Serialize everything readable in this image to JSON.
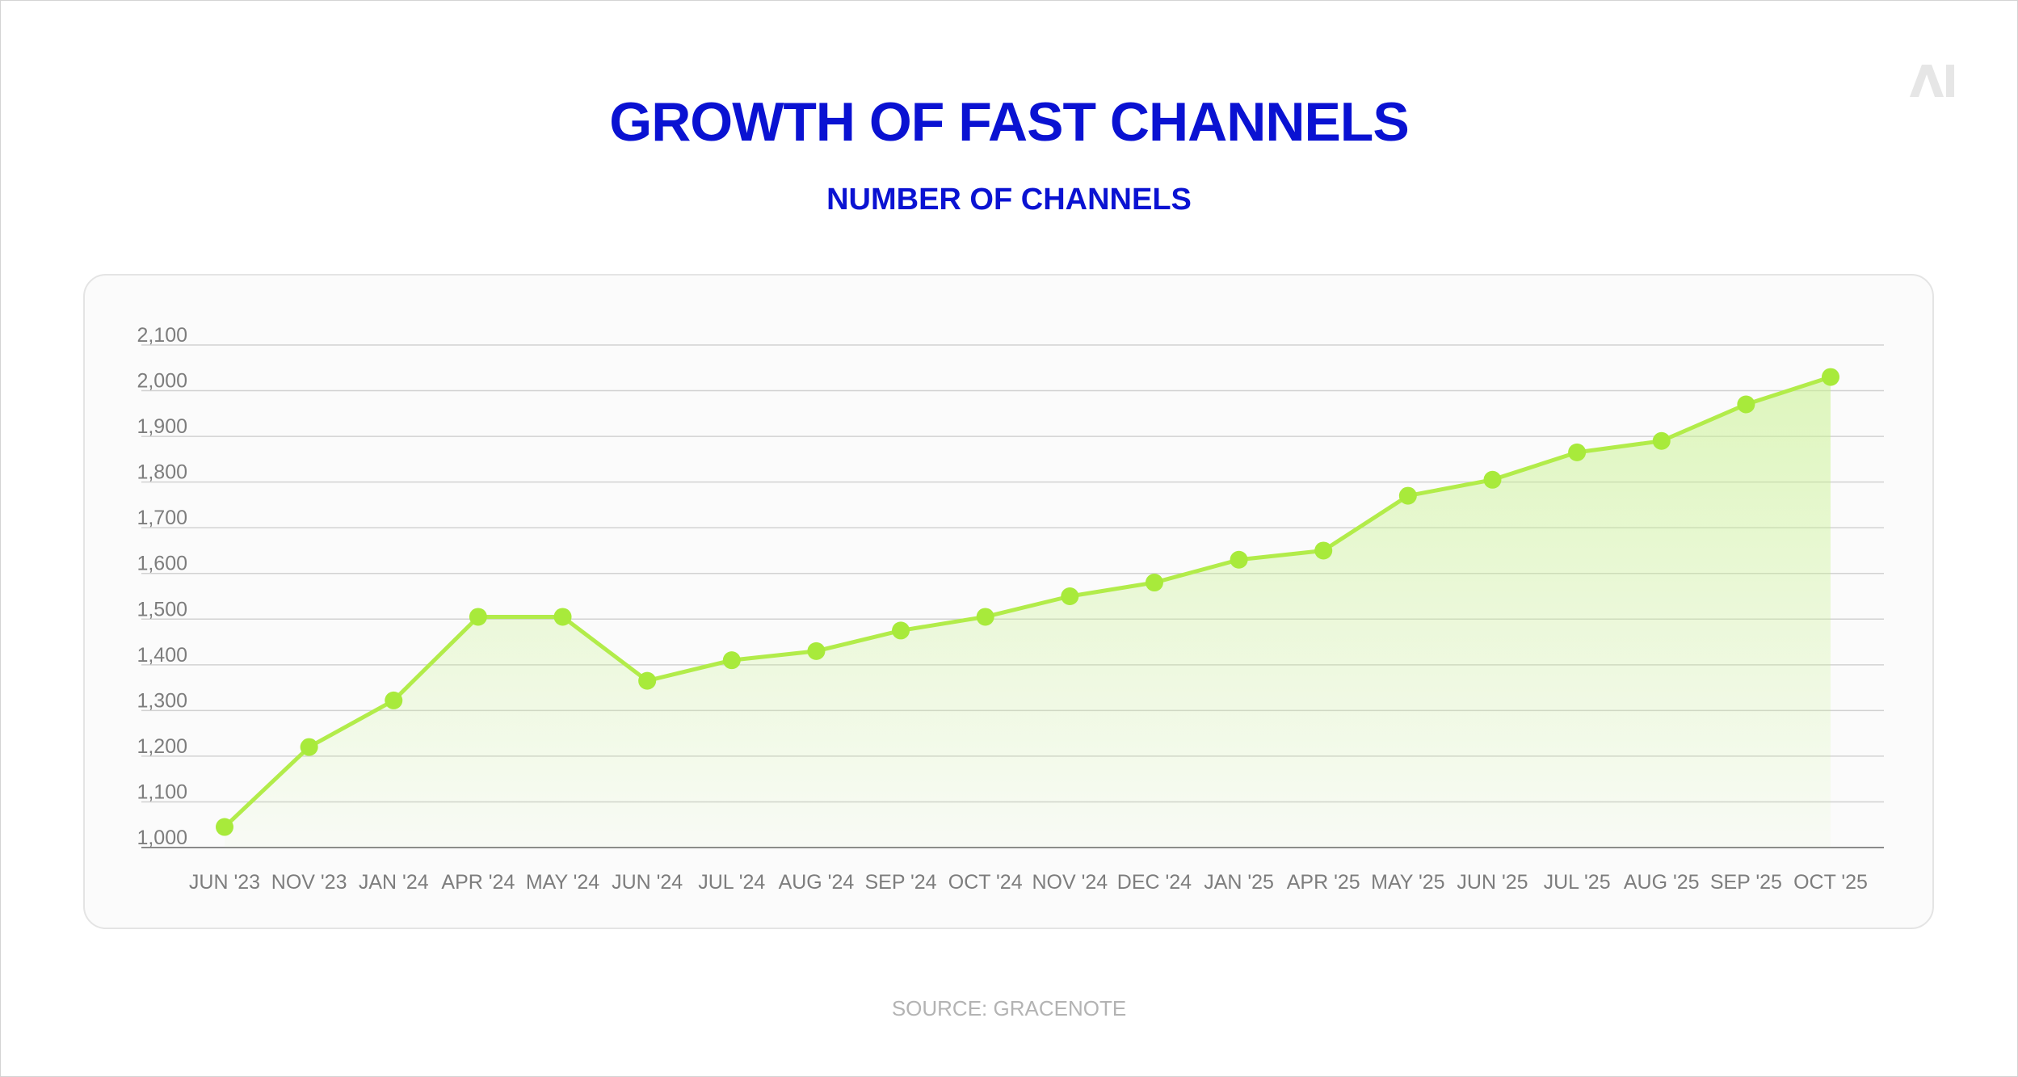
{
  "title": "GROWTH OF FAST CHANNELS",
  "subtitle": "NUMBER OF CHANNELS",
  "source": "SOURCE: GRACENOTE",
  "logo_text": "AI",
  "colors": {
    "title": "#0a12d2",
    "line": "#b2ec4a",
    "point": "#a8ea3b",
    "area": "#c6f28a",
    "grid": "#d2d2d2",
    "tick_label": "#7d7d7d",
    "source": "#b3b3b3"
  },
  "chart_data": {
    "type": "line",
    "categories": [
      "JUN '23",
      "NOV '23",
      "JAN '24",
      "APR '24",
      "MAY '24",
      "JUN '24",
      "JUL '24",
      "AUG '24",
      "SEP '24",
      "OCT '24",
      "NOV '24",
      "DEC '24",
      "JAN '25",
      "APR '25",
      "MAY '25",
      "JUN '25",
      "JUL '25",
      "AUG '25",
      "SEP '25",
      "OCT '25"
    ],
    "values": [
      1045,
      1220,
      1322,
      1505,
      1505,
      1365,
      1410,
      1430,
      1475,
      1505,
      1550,
      1580,
      1630,
      1650,
      1770,
      1805,
      1865,
      1890,
      1970,
      2030
    ],
    "yticks": [
      1000,
      1100,
      1200,
      1300,
      1400,
      1500,
      1600,
      1700,
      1800,
      1900,
      2000,
      2100
    ],
    "ytick_labels": [
      "1,000",
      "1,100",
      "1,200",
      "1,300",
      "1,400",
      "1,500",
      "1,600",
      "1,700",
      "1,800",
      "1,900",
      "2,000",
      "2,100"
    ],
    "ylim": [
      1000,
      2100
    ],
    "fill_under_line": true,
    "grid": true,
    "xlabel": "",
    "ylabel": ""
  }
}
